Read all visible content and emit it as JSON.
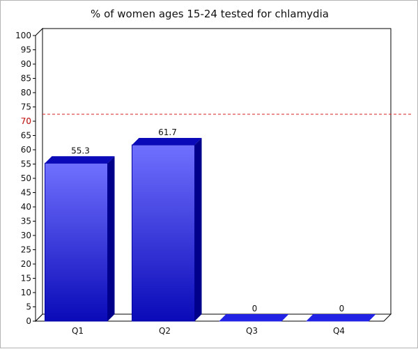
{
  "chart_data": {
    "type": "bar",
    "title": "% of women ages 15-24 tested for chlamydia",
    "categories": [
      "Q1",
      "Q2",
      "Q3",
      "Q4"
    ],
    "values": [
      55.3,
      61.7,
      0,
      0
    ],
    "value_labels": [
      "55.3",
      "61.7",
      "0",
      "0"
    ],
    "ylim": [
      0,
      100
    ],
    "yticks": [
      0,
      5,
      10,
      15,
      20,
      25,
      30,
      35,
      40,
      45,
      50,
      55,
      60,
      65,
      70,
      75,
      80,
      85,
      90,
      95,
      100
    ],
    "reference_line": {
      "value": 70,
      "label": "70",
      "color": "#d42020",
      "style": "dashed"
    },
    "bar_color_top": "#7070ff",
    "bar_color_bottom": "#0a0ab8",
    "bar_side_color": "#00008a",
    "grid": false,
    "legend": "none"
  }
}
